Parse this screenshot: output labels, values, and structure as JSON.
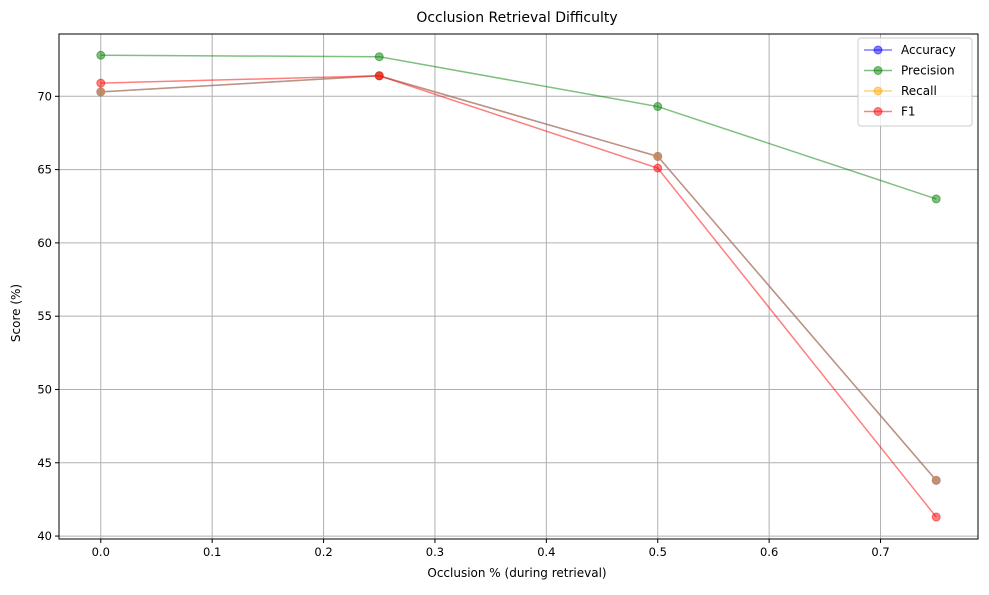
{
  "chart_data": {
    "type": "line",
    "title": "Occlusion Retrieval Difficulty",
    "xlabel": "Occlusion % (during retrieval)",
    "ylabel": "Score (%)",
    "x": [
      0.0,
      0.25,
      0.5,
      0.75
    ],
    "xlim": [
      -0.0375,
      0.7875
    ],
    "ylim": [
      39.8,
      74.25
    ],
    "xticks": [
      "0.0",
      "0.1",
      "0.2",
      "0.3",
      "0.4",
      "0.5",
      "0.6",
      "0.7"
    ],
    "yticks": [
      "40",
      "45",
      "50",
      "55",
      "60",
      "65",
      "70"
    ],
    "grid": true,
    "legend_position": "top-right",
    "series": [
      {
        "name": "Accuracy",
        "color": "#0000ff",
        "values": [
          70.3,
          71.4,
          65.9,
          43.8
        ]
      },
      {
        "name": "Precision",
        "color": "#008000",
        "values": [
          72.8,
          72.7,
          69.3,
          63.0
        ]
      },
      {
        "name": "Recall",
        "color": "#ffa500",
        "values": [
          70.3,
          71.4,
          65.9,
          43.8
        ]
      },
      {
        "name": "F1",
        "color": "#ff0000",
        "values": [
          70.9,
          71.4,
          65.1,
          41.3
        ]
      }
    ]
  }
}
